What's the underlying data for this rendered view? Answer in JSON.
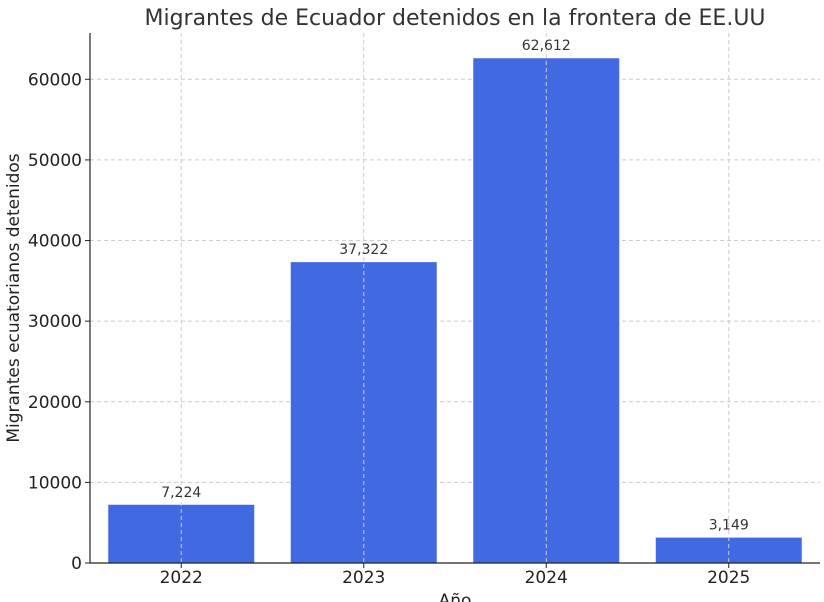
{
  "chart_data": {
    "type": "bar",
    "title": "Migrantes de Ecuador detenidos en la frontera de EE.UU",
    "xlabel": "Año",
    "ylabel": "Migrantes ecuatorianos detenidos",
    "categories": [
      "2022",
      "2023",
      "2024",
      "2025"
    ],
    "values": [
      7224,
      37322,
      62612,
      3149
    ],
    "value_labels": [
      "7,224",
      "37,322",
      "62,612",
      "3,149"
    ],
    "ylim": [
      0,
      65744
    ],
    "yticks": [
      0,
      10000,
      20000,
      30000,
      40000,
      50000,
      60000
    ],
    "ytick_labels": [
      "0",
      "10000",
      "20000",
      "30000",
      "40000",
      "50000",
      "60000"
    ],
    "grid": true,
    "bar_color": "#4169e1"
  }
}
